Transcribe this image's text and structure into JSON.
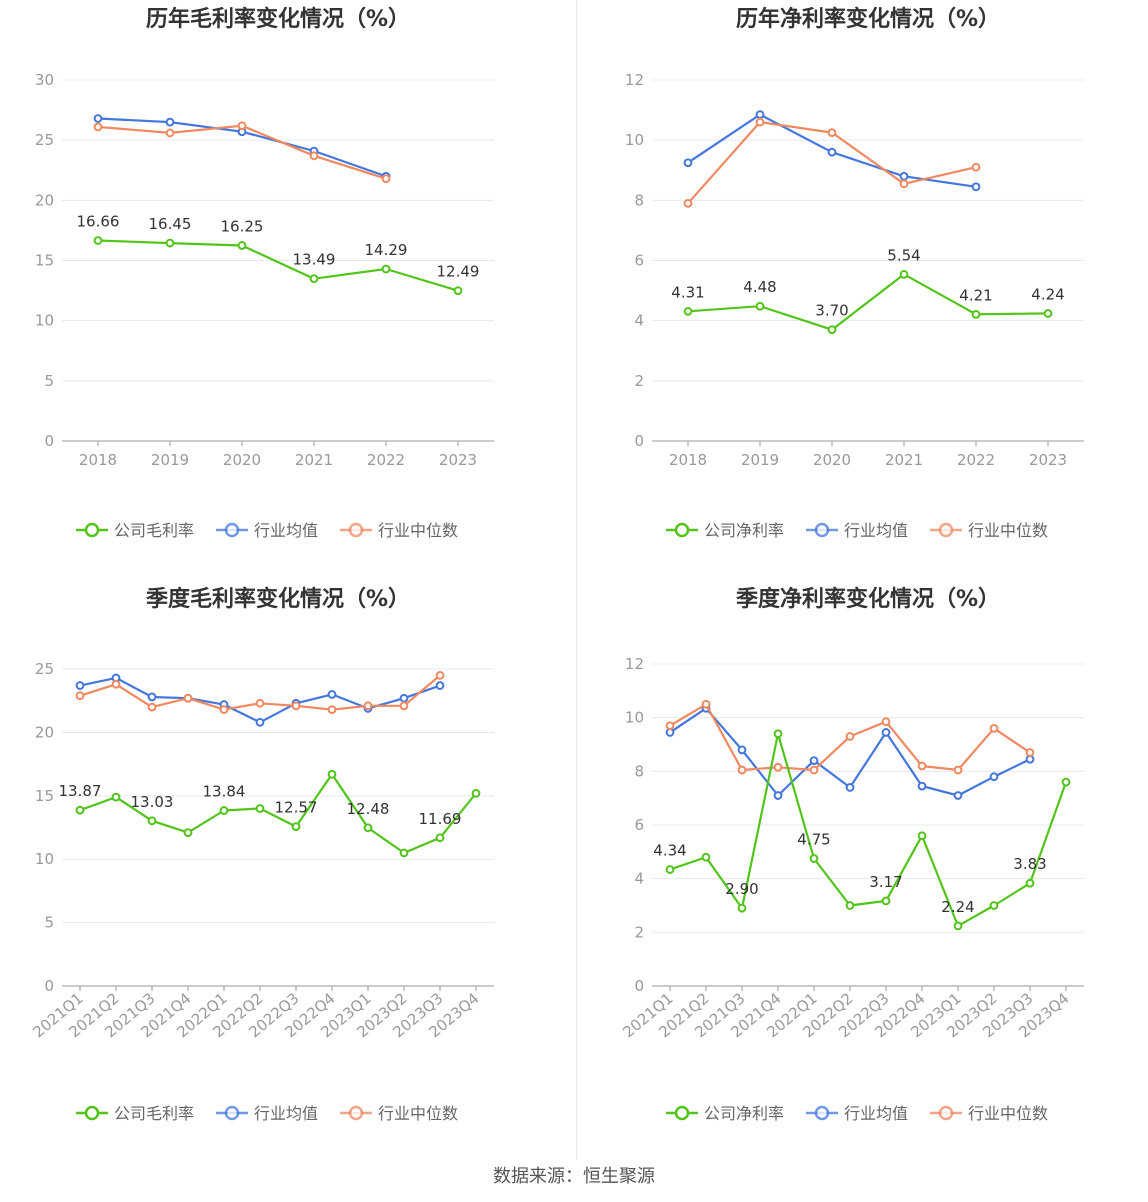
{
  "colors": {
    "company": "#52c41a",
    "avg": "#4477dd",
    "median": "#f08860",
    "grid": "#e6e8f0",
    "axis": "#999999"
  },
  "source_text": "数据来源：恒生聚源",
  "chart_data": [
    {
      "id": "annual-gross",
      "type": "line",
      "title": "历年毛利率变化情况（%）",
      "categories": [
        "2018",
        "2019",
        "2020",
        "2021",
        "2022",
        "2023"
      ],
      "ylim": [
        0,
        30
      ],
      "yticks": [
        0,
        5,
        10,
        15,
        20,
        25,
        30
      ],
      "grid": true,
      "legend": "bottom-center",
      "series": [
        {
          "name": "公司毛利率",
          "color_key": "company",
          "values": [
            16.66,
            16.45,
            16.25,
            13.49,
            14.29,
            12.49
          ],
          "labels": [
            "16.66",
            "16.45",
            "16.25",
            "13.49",
            "14.29",
            "12.49"
          ]
        },
        {
          "name": "行业均值",
          "color_key": "avg",
          "values": [
            26.8,
            26.5,
            25.7,
            24.1,
            22.0,
            null
          ]
        },
        {
          "name": "行业中位数",
          "color_key": "median",
          "values": [
            26.1,
            25.6,
            26.2,
            23.7,
            21.8,
            null
          ]
        }
      ]
    },
    {
      "id": "annual-net",
      "type": "line",
      "title": "历年净利率变化情况（%）",
      "categories": [
        "2018",
        "2019",
        "2020",
        "2021",
        "2022",
        "2023"
      ],
      "ylim": [
        0,
        12
      ],
      "yticks": [
        0,
        2,
        4,
        6,
        8,
        10,
        12
      ],
      "grid": true,
      "legend": "bottom-center",
      "series": [
        {
          "name": "公司净利率",
          "color_key": "company",
          "values": [
            4.31,
            4.48,
            3.7,
            5.54,
            4.21,
            4.24
          ],
          "labels": [
            "4.31",
            "4.48",
            "3.70",
            "5.54",
            "4.21",
            "4.24"
          ]
        },
        {
          "name": "行业均值",
          "color_key": "avg",
          "values": [
            9.25,
            10.85,
            9.6,
            8.8,
            8.45,
            null
          ]
        },
        {
          "name": "行业中位数",
          "color_key": "median",
          "values": [
            7.9,
            10.6,
            10.25,
            8.55,
            9.1,
            null
          ]
        }
      ]
    },
    {
      "id": "quarterly-gross",
      "type": "line",
      "title": "季度毛利率变化情况（%）",
      "categories": [
        "2021Q1",
        "2021Q2",
        "2021Q3",
        "2021Q4",
        "2022Q1",
        "2022Q2",
        "2022Q3",
        "2022Q4",
        "2023Q1",
        "2023Q2",
        "2023Q3",
        "2023Q4"
      ],
      "ylim": [
        0,
        25
      ],
      "yticks": [
        0,
        5,
        10,
        15,
        20,
        25
      ],
      "ymax": 25.4,
      "grid": true,
      "legend": "bottom-center",
      "rotate_x": true,
      "series": [
        {
          "name": "公司毛利率",
          "color_key": "company",
          "values": [
            13.87,
            14.9,
            13.03,
            12.1,
            13.84,
            14.0,
            12.57,
            16.7,
            12.48,
            10.5,
            11.69,
            15.2
          ],
          "labels": [
            "13.87",
            "",
            "13.03",
            "",
            "13.84",
            "",
            "12.57",
            "",
            "12.48",
            "",
            "11.69",
            ""
          ]
        },
        {
          "name": "行业均值",
          "color_key": "avg",
          "values": [
            23.7,
            24.3,
            22.8,
            22.7,
            22.2,
            20.8,
            22.3,
            23.0,
            21.9,
            22.7,
            23.7,
            null
          ]
        },
        {
          "name": "行业中位数",
          "color_key": "median",
          "values": [
            22.9,
            23.8,
            22.0,
            22.7,
            21.8,
            22.3,
            22.1,
            21.8,
            22.1,
            22.1,
            24.5,
            null
          ]
        }
      ]
    },
    {
      "id": "quarterly-net",
      "type": "line",
      "title": "季度净利率变化情况（%）",
      "categories": [
        "2021Q1",
        "2021Q2",
        "2021Q3",
        "2021Q4",
        "2022Q1",
        "2022Q2",
        "2022Q3",
        "2022Q4",
        "2023Q1",
        "2023Q2",
        "2023Q3",
        "2023Q4"
      ],
      "ylim": [
        0,
        12
      ],
      "yticks": [
        0,
        2,
        4,
        6,
        8,
        10,
        12
      ],
      "grid": true,
      "legend": "bottom-center",
      "rotate_x": true,
      "series": [
        {
          "name": "公司净利率",
          "color_key": "company",
          "values": [
            4.34,
            4.8,
            2.9,
            9.4,
            4.75,
            3.0,
            3.17,
            5.6,
            2.24,
            3.0,
            3.83,
            7.6
          ],
          "labels": [
            "4.34",
            "",
            "2.90",
            "",
            "4.75",
            "",
            "3.17",
            "",
            "2.24",
            "",
            "3.83",
            ""
          ]
        },
        {
          "name": "行业均值",
          "color_key": "avg",
          "values": [
            9.45,
            10.35,
            8.8,
            7.1,
            8.4,
            7.4,
            9.45,
            7.45,
            7.1,
            7.8,
            8.45,
            null
          ]
        },
        {
          "name": "行业中位数",
          "color_key": "median",
          "values": [
            9.7,
            10.5,
            8.05,
            8.15,
            8.05,
            9.3,
            9.85,
            8.2,
            8.05,
            9.6,
            8.7,
            null
          ]
        }
      ]
    }
  ]
}
